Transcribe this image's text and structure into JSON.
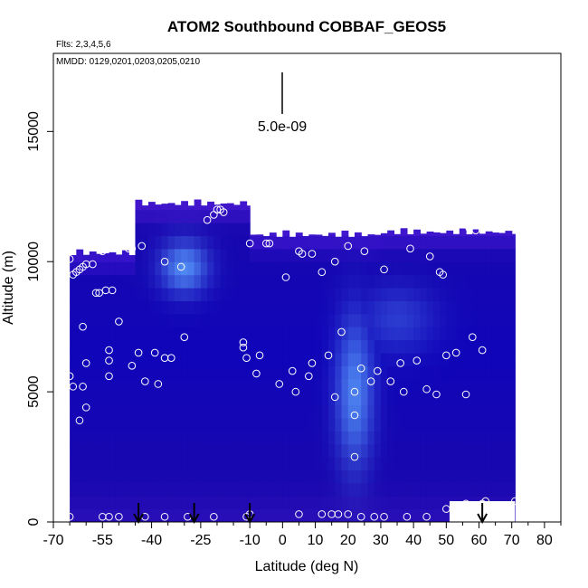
{
  "chart_data": {
    "type": "heatmap",
    "title": "ATOM2 Southbound COBBAF_GEOS5",
    "flights_note": "Flts: 2,3,4,5,6",
    "dates_note": "MMDD: 0129,0201,0203,0205,0210",
    "scale_label": "5.0e-09",
    "xlabel": "Latitude (deg N)",
    "ylabel": "Altitude (m)",
    "xlim": [
      -70,
      85
    ],
    "ylim": [
      0,
      18000
    ],
    "x_ticks": [
      -70,
      -55,
      -40,
      -25,
      -10,
      0,
      10,
      20,
      30,
      40,
      50,
      60,
      70,
      80
    ],
    "x_tick_labels": [
      "-70",
      "-55",
      "-40",
      "-25",
      "-10",
      "0",
      "10",
      "20",
      "30",
      "40",
      "50",
      "60",
      "70",
      "80"
    ],
    "y_ticks": [
      0,
      5000,
      10000,
      15000
    ],
    "y_tick_labels": [
      "0",
      "5000",
      "10000",
      "15000"
    ],
    "grid": false,
    "colormap": [
      "#5a1fd6",
      "#1f0aa8",
      "#0000c8",
      "#5a9fff"
    ],
    "background_region": [
      {
        "x": [
          -65,
          -45
        ],
        "y": [
          0,
          10500
        ]
      },
      {
        "x": [
          -45,
          -10
        ],
        "y": [
          0,
          12400
        ]
      },
      {
        "x": [
          -10,
          30
        ],
        "y": [
          0,
          11200
        ]
      },
      {
        "x": [
          30,
          71
        ],
        "y": [
          0,
          11300
        ]
      }
    ],
    "enhancements": [
      {
        "x": -30,
        "y": 9800,
        "sx": 5,
        "sy": 700,
        "level": 0.85
      },
      {
        "x": 22,
        "y": 5000,
        "sx": 4,
        "sy": 2000,
        "level": 0.8
      },
      {
        "x": 35,
        "y": 7800,
        "sx": 8,
        "sy": 900,
        "level": 0.35
      }
    ],
    "sample_points": [
      [
        -65,
        10100
      ],
      [
        -64,
        9500
      ],
      [
        -63,
        9600
      ],
      [
        -62,
        9700
      ],
      [
        -61,
        9800
      ],
      [
        -60,
        9900
      ],
      [
        -58,
        9900
      ],
      [
        -55,
        10600
      ],
      [
        -55,
        10400
      ],
      [
        -53,
        11700
      ],
      [
        -52,
        12000
      ],
      [
        -50,
        12200
      ],
      [
        -51,
        10900
      ],
      [
        -47,
        10500
      ],
      [
        -46,
        10500
      ],
      [
        -43,
        10600
      ],
      [
        -36,
        10000
      ],
      [
        -31,
        9800
      ],
      [
        -23,
        11600
      ],
      [
        -21,
        11800
      ],
      [
        -20,
        12000
      ],
      [
        -19,
        12000
      ],
      [
        -18,
        11900
      ],
      [
        -10,
        10700
      ],
      [
        -5,
        10700
      ],
      [
        -4,
        10700
      ],
      [
        1,
        9400
      ],
      [
        5,
        10400
      ],
      [
        6,
        10300
      ],
      [
        9,
        10300
      ],
      [
        12,
        9600
      ],
      [
        16,
        10000
      ],
      [
        20,
        10600
      ],
      [
        25,
        10400
      ],
      [
        31,
        9700
      ],
      [
        39,
        10500
      ],
      [
        45,
        10200
      ],
      [
        48,
        9600
      ],
      [
        49,
        9500
      ],
      [
        57,
        11300
      ],
      [
        59,
        11200
      ],
      [
        -65,
        5600
      ],
      [
        -64,
        5200
      ],
      [
        -61,
        7500
      ],
      [
        -60,
        6100
      ],
      [
        -57,
        8800
      ],
      [
        -56,
        8800
      ],
      [
        -54,
        8900
      ],
      [
        -52,
        8900
      ],
      [
        -50,
        7700
      ],
      [
        -53,
        6200
      ],
      [
        -53,
        5600
      ],
      [
        -61,
        5200
      ],
      [
        -60,
        4400
      ],
      [
        -62,
        3900
      ],
      [
        -53,
        6600
      ],
      [
        -46,
        6000
      ],
      [
        -44,
        6500
      ],
      [
        -42,
        5400
      ],
      [
        -39,
        6500
      ],
      [
        -38,
        5300
      ],
      [
        -36,
        6300
      ],
      [
        -34,
        6300
      ],
      [
        -30,
        7100
      ],
      [
        -12,
        6900
      ],
      [
        -12,
        6700
      ],
      [
        -11,
        6300
      ],
      [
        -8,
        5700
      ],
      [
        -7,
        6400
      ],
      [
        -1,
        5300
      ],
      [
        3,
        5800
      ],
      [
        4,
        5000
      ],
      [
        8,
        5600
      ],
      [
        9,
        6100
      ],
      [
        14,
        6400
      ],
      [
        16,
        4800
      ],
      [
        18,
        7300
      ],
      [
        22,
        4100
      ],
      [
        22,
        5000
      ],
      [
        24,
        5900
      ],
      [
        27,
        5400
      ],
      [
        29,
        5800
      ],
      [
        33,
        5400
      ],
      [
        36,
        6100
      ],
      [
        37,
        5000
      ],
      [
        41,
        6200
      ],
      [
        44,
        5100
      ],
      [
        47,
        4900
      ],
      [
        50,
        6400
      ],
      [
        53,
        6500
      ],
      [
        56,
        4900
      ],
      [
        58,
        7100
      ],
      [
        61,
        6600
      ],
      [
        62,
        800
      ],
      [
        22,
        2500
      ],
      [
        -65,
        200
      ],
      [
        -55,
        200
      ],
      [
        -53,
        200
      ],
      [
        -50,
        200
      ],
      [
        -42,
        200
      ],
      [
        -36,
        200
      ],
      [
        -29,
        200
      ],
      [
        -21,
        200
      ],
      [
        -11,
        200
      ],
      [
        -10,
        300
      ],
      [
        5,
        300
      ],
      [
        12,
        300
      ],
      [
        15,
        300
      ],
      [
        17,
        300
      ],
      [
        20,
        300
      ],
      [
        24,
        200
      ],
      [
        28,
        200
      ],
      [
        31,
        200
      ],
      [
        38,
        200
      ],
      [
        44,
        200
      ],
      [
        50,
        500
      ],
      [
        56,
        700
      ],
      [
        61,
        700
      ],
      [
        71,
        800
      ]
    ],
    "arrows": [
      -44,
      -27,
      -10,
      61
    ],
    "right_notch": {
      "x": [
        51,
        71
      ],
      "y": [
        0,
        800
      ]
    }
  }
}
